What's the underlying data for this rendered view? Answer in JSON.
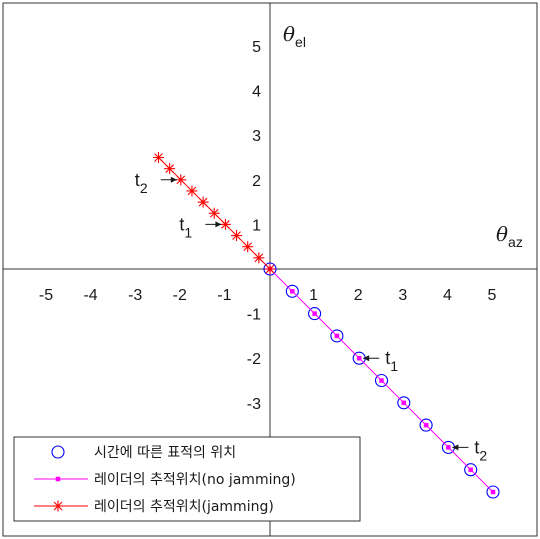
{
  "chart_data": {
    "type": "line",
    "xlabel": "θ",
    "xlabel_sub": "az",
    "ylabel": "θ",
    "ylabel_sub": "el",
    "xlim": [
      -5.8,
      6.0
    ],
    "ylim": [
      -6.0,
      5.9
    ],
    "xticks": [
      -5,
      -4,
      -3,
      -2,
      -1,
      1,
      2,
      3,
      4,
      5
    ],
    "yticks": [
      -3,
      -2,
      -1,
      1,
      2,
      3,
      4,
      5
    ],
    "grid": false,
    "legend_position": "bottom-left",
    "series": [
      {
        "name": "시간에 따른 표적의 위치",
        "marker": "circle",
        "line": false,
        "color": "#0000ff",
        "x": [
          0,
          0.5,
          1,
          1.5,
          2,
          2.5,
          3,
          3.5,
          4,
          4.5,
          5
        ],
        "y": [
          0,
          -0.5,
          -1,
          -1.5,
          -2,
          -2.5,
          -3,
          -3.5,
          -4,
          -4.5,
          -5
        ]
      },
      {
        "name": "레이더의 추적위치(no jamming)",
        "marker": "square",
        "line": true,
        "color": "#ff00ff",
        "x": [
          0,
          0.5,
          1,
          1.5,
          2,
          2.5,
          3,
          3.5,
          4,
          4.5,
          5
        ],
        "y": [
          0,
          -0.5,
          -1,
          -1.5,
          -2,
          -2.5,
          -3,
          -3.5,
          -4,
          -4.5,
          -5
        ]
      },
      {
        "name": "레이더의 추적위치(jamming)",
        "marker": "star",
        "line": true,
        "color": "#ff0000",
        "x": [
          0,
          -0.25,
          -0.5,
          -0.75,
          -1,
          -1.25,
          -1.5,
          -1.75,
          -2,
          -2.25,
          -2.5
        ],
        "y": [
          0,
          0.25,
          0.5,
          0.75,
          1,
          1.25,
          1.5,
          1.75,
          2,
          2.25,
          2.5
        ]
      }
    ],
    "annotations": [
      {
        "label": "t",
        "sub": "2",
        "x": -2,
        "y": 2,
        "side": "left"
      },
      {
        "label": "t",
        "sub": "1",
        "x": -1,
        "y": 1,
        "side": "left"
      },
      {
        "label": "t",
        "sub": "1",
        "x": 2,
        "y": -2,
        "side": "right"
      },
      {
        "label": "t",
        "sub": "2",
        "x": 4,
        "y": -4,
        "side": "right"
      }
    ]
  }
}
